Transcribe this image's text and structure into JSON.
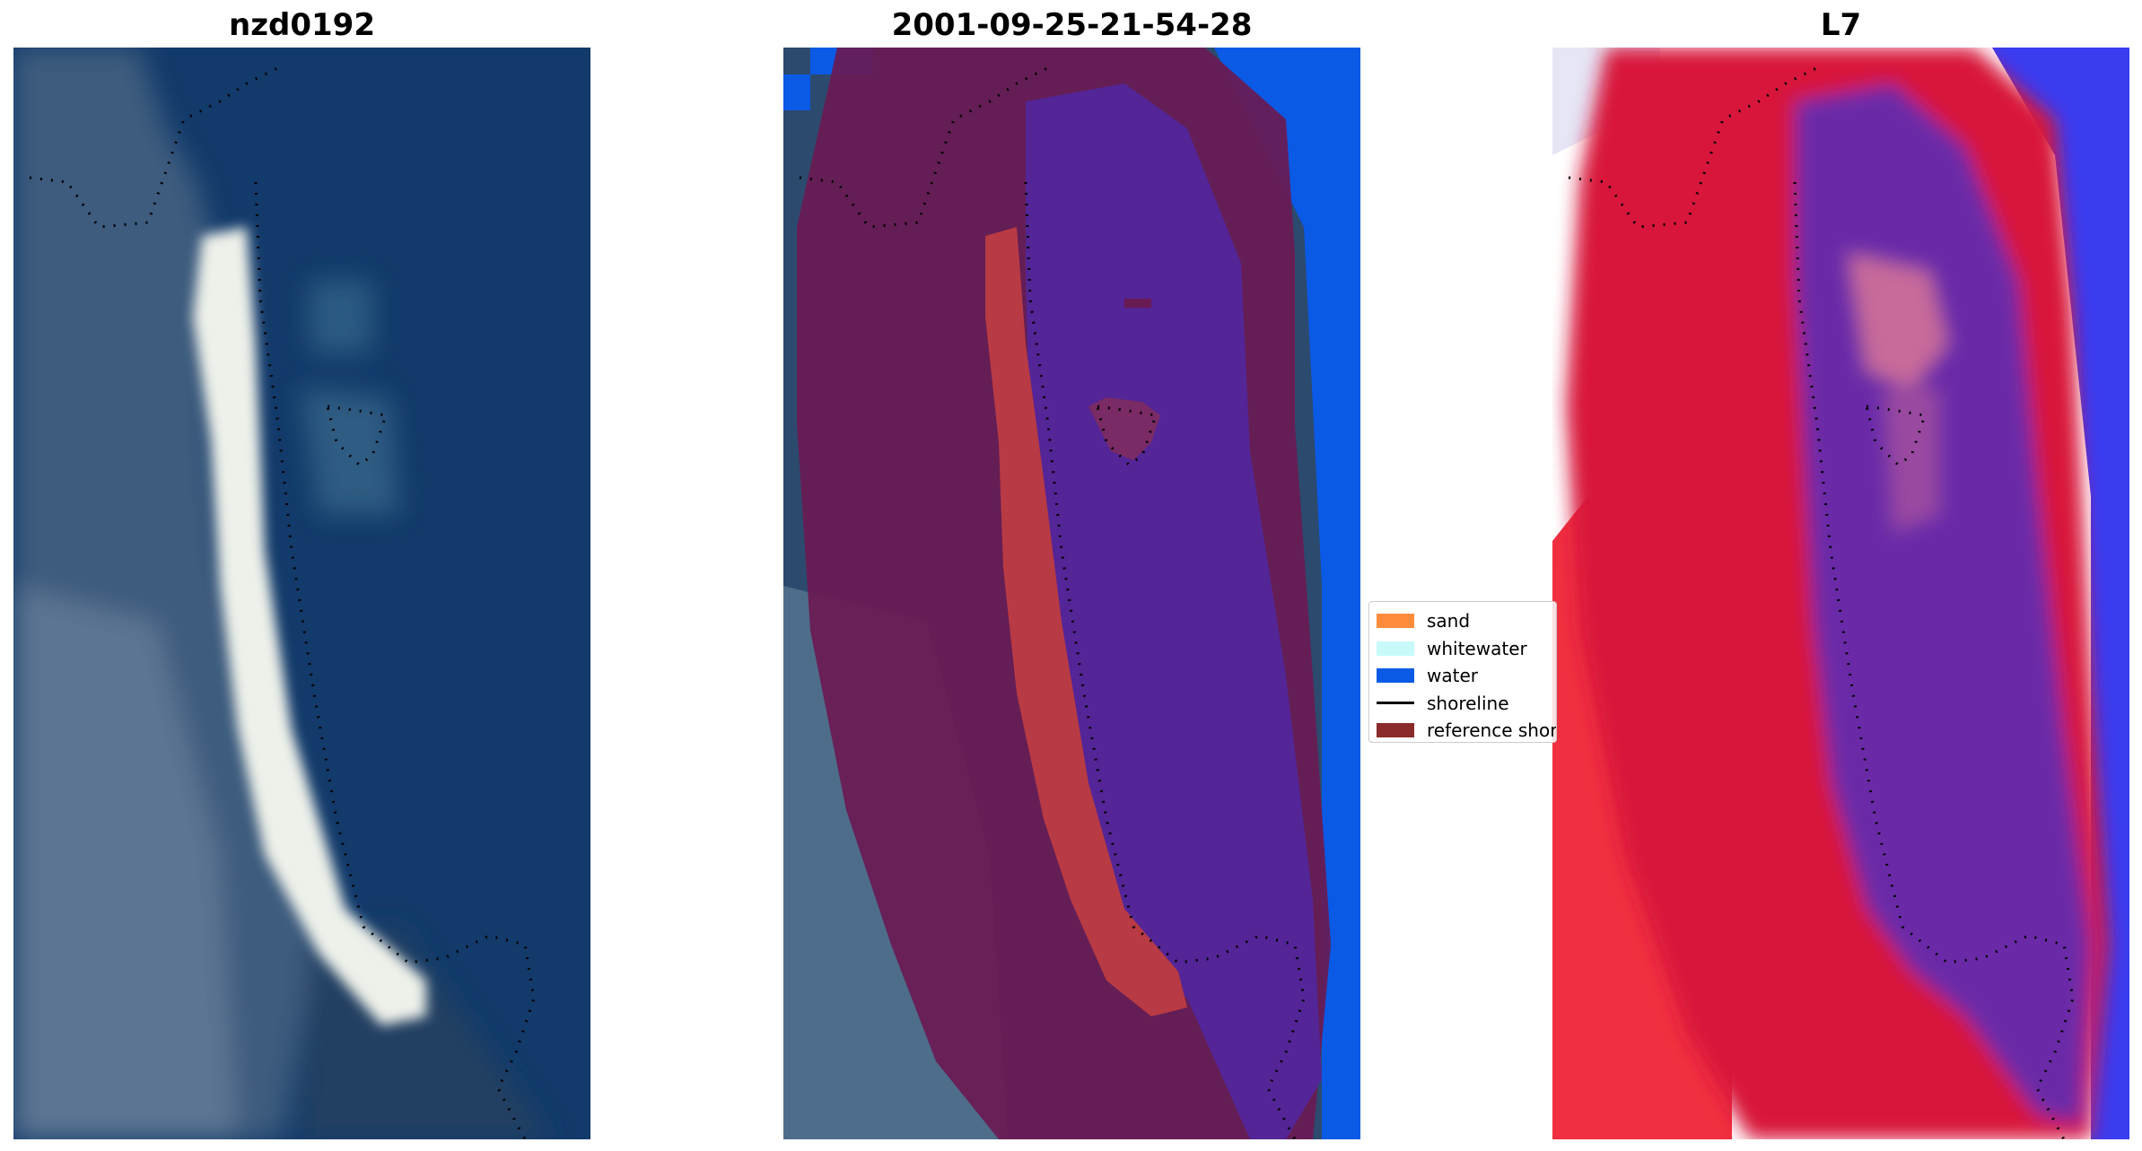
{
  "panels": [
    {
      "title": "nzd0192"
    },
    {
      "title": "2001-09-25-21-54-28"
    },
    {
      "title": "L7"
    }
  ],
  "legend": {
    "items": [
      {
        "label": "sand",
        "color": "#ff8c3c",
        "kind": "patch"
      },
      {
        "label": "whitewater",
        "color": "#c8fafa",
        "kind": "patch"
      },
      {
        "label": "water",
        "color": "#0a5ae6",
        "kind": "patch"
      },
      {
        "label": "shoreline",
        "color": "#000000",
        "kind": "line"
      },
      {
        "label": "reference shoreline",
        "color": "#8b2a2a",
        "kind": "patch"
      }
    ]
  },
  "colors": {
    "water_deep": "#0e2f5c",
    "sea_rgb": "#123a6a",
    "land_rgb": "#3d5b7e",
    "sand_rgb": "#f2f4ee",
    "mask_purple": "#6a1a52",
    "mask_water": "#542596",
    "mask_sand": "#b83a44",
    "bright_water": "#0a5ae6",
    "mndwi_red": "#d8183a",
    "mndwi_purple": "#6a2aa8",
    "mndwi_blue": "#3a3cf0"
  },
  "icons": [
    "reference-shoreline-dotted"
  ]
}
